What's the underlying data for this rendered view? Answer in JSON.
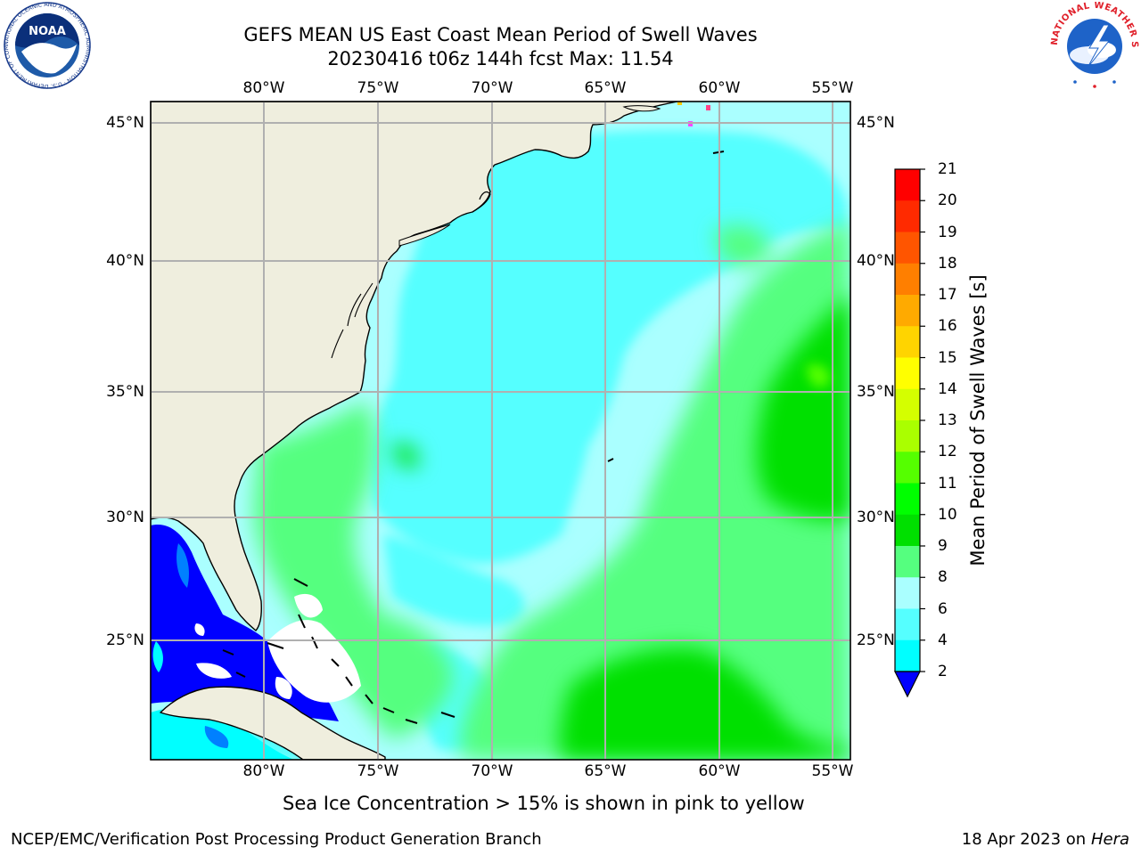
{
  "title_line1": "GEFS MEAN US East Coast Mean Period of Swell Waves",
  "title_line2": "20230416 t06z 144h fcst   Max: 11.54",
  "lon_labels": [
    "80°W",
    "75°W",
    "70°W",
    "65°W",
    "60°W",
    "55°W"
  ],
  "lat_labels": [
    "45°N",
    "40°N",
    "35°N",
    "30°N",
    "25°N"
  ],
  "colorbar": {
    "title": "Mean Period of Swell Waves [s]",
    "ticks": [
      "21",
      "20",
      "19",
      "18",
      "17",
      "16",
      "15",
      "14",
      "13",
      "12",
      "11",
      "10",
      "9",
      "8",
      "6",
      "4",
      "2"
    ],
    "colors": [
      "#ff0000",
      "#ff2a00",
      "#ff5500",
      "#ff7f00",
      "#ffaa00",
      "#ffd400",
      "#ffff00",
      "#d4ff00",
      "#aaff00",
      "#55ff00",
      "#00ff00",
      "#00e000",
      "#55ff7f",
      "#aaffff",
      "#55ffff",
      "#00ffff",
      "#0080ff",
      "#0000ff"
    ]
  },
  "caption": "Sea Ice Concentration > 15% is shown in pink to yellow",
  "footer_left": "NCEP/EMC/Verification Post Processing Product Generation Branch",
  "footer_right_date": "18 Apr 2023 on",
  "footer_right_host": "Hera",
  "logos": {
    "noaa_text": "NOAA",
    "noaa_ring": "NATIONAL OCEANIC AND ATMOSPHERIC ADMINISTRATION · U.S. DEPARTMENT OF COMMERCE",
    "nws_ring": "NATIONAL WEATHER SERVICE"
  }
}
